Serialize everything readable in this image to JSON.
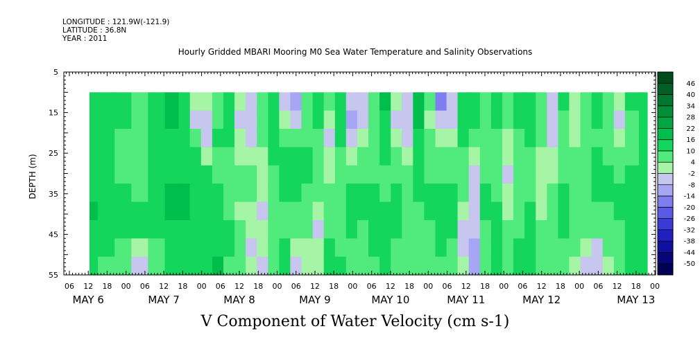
{
  "header": {
    "longitude": "LONGITUDE : 121.9W(-121.9)",
    "latitude": "LATITUDE : 36.8N",
    "year": "YEAR : 2011"
  },
  "chart_data": {
    "type": "heatmap",
    "title": "Hourly Gridded MBARI Mooring M0 Sea Water Temperature and Salinity Observations",
    "xlabel": "V Component of Water Velocity (cm s-1)",
    "ylabel": "DEPTH (m)",
    "ylim": [
      55,
      5
    ],
    "y_ticks": [
      5,
      15,
      25,
      35,
      45,
      55
    ],
    "data_depth_range": [
      10,
      55
    ],
    "x_hour_ticks": [
      "06",
      "12",
      "18",
      "00",
      "06",
      "12",
      "18",
      "00",
      "06",
      "12",
      "18",
      "00",
      "06",
      "12",
      "18",
      "00",
      "06",
      "12",
      "18",
      "00",
      "06",
      "12",
      "18",
      "00",
      "06",
      "12",
      "18",
      "00",
      "06",
      "12",
      "18",
      "00"
    ],
    "x_date_labels": [
      "MAY  6",
      "MAY  7",
      "MAY  8",
      "MAY  9",
      "MAY 10",
      "MAY 11",
      "MAY 12",
      "MAY 13"
    ],
    "colorbar": {
      "levels": [
        46,
        40,
        34,
        28,
        22,
        16,
        10,
        4,
        -2,
        -8,
        -14,
        -20,
        -26,
        -32,
        -38,
        -44,
        -50
      ],
      "colors": [
        "#004a1c",
        "#005f25",
        "#00772f",
        "#008f38",
        "#00a642",
        "#00be4c",
        "#14d65c",
        "#50eb7c",
        "#a6f5a6",
        "#c6c6ee",
        "#a6a6f5",
        "#7e7ef0",
        "#5a5ae6",
        "#3a3ad6",
        "#2020c0",
        "#10109e",
        "#06067a",
        "#000055"
      ]
    },
    "columns": [
      {
        "t": 0.0,
        "v": [
          14,
          12,
          12,
          12,
          13,
          15,
          16,
          14,
          12,
          10
        ]
      },
      {
        "t": 0.03,
        "v": [
          12,
          12,
          12,
          10,
          12,
          14,
          14,
          12,
          10,
          8
        ]
      },
      {
        "t": 0.06,
        "v": [
          10,
          10,
          8,
          6,
          8,
          10,
          12,
          10,
          6,
          4
        ]
      },
      {
        "t": 0.09,
        "v": [
          8,
          8,
          6,
          4,
          6,
          8,
          10,
          10,
          -2,
          -6
        ]
      },
      {
        "t": 0.12,
        "v": [
          14,
          14,
          12,
          10,
          12,
          14,
          14,
          12,
          8,
          6
        ]
      },
      {
        "t": 0.15,
        "v": [
          18,
          16,
          14,
          12,
          14,
          16,
          16,
          14,
          12,
          10
        ]
      },
      {
        "t": 0.17,
        "v": [
          10,
          10,
          12,
          14,
          14,
          16,
          16,
          14,
          12,
          12
        ]
      },
      {
        "t": 0.19,
        "v": [
          -2,
          -4,
          4,
          10,
          12,
          14,
          14,
          12,
          12,
          10
        ]
      },
      {
        "t": 0.21,
        "v": [
          -2,
          -6,
          -4,
          2,
          10,
          12,
          12,
          10,
          12,
          14
        ]
      },
      {
        "t": 0.23,
        "v": [
          8,
          8,
          10,
          8,
          8,
          10,
          10,
          12,
          14,
          16
        ]
      },
      {
        "t": 0.25,
        "v": [
          12,
          10,
          10,
          8,
          6,
          6,
          8,
          10,
          10,
          8
        ]
      },
      {
        "t": 0.27,
        "v": [
          -2,
          -4,
          -2,
          2,
          4,
          4,
          2,
          6,
          8,
          6
        ]
      },
      {
        "t": 0.29,
        "v": [
          -4,
          -6,
          -4,
          2,
          6,
          4,
          -2,
          -2,
          -4,
          -2
        ]
      },
      {
        "t": 0.31,
        "v": [
          8,
          6,
          4,
          2,
          2,
          -2,
          -4,
          -2,
          -2,
          -4
        ]
      },
      {
        "t": 0.33,
        "v": [
          14,
          14,
          12,
          10,
          8,
          6,
          4,
          4,
          6,
          8
        ]
      },
      {
        "t": 0.35,
        "v": [
          -4,
          -2,
          6,
          10,
          12,
          10,
          8,
          8,
          10,
          10
        ]
      },
      {
        "t": 0.37,
        "v": [
          -10,
          -6,
          4,
          10,
          12,
          10,
          8,
          6,
          -2,
          -4
        ]
      },
      {
        "t": 0.39,
        "v": [
          8,
          6,
          8,
          10,
          10,
          8,
          6,
          4,
          -2,
          -2
        ]
      },
      {
        "t": 0.41,
        "v": [
          12,
          10,
          8,
          6,
          6,
          4,
          -2,
          -4,
          -2,
          2
        ]
      },
      {
        "t": 0.43,
        "v": [
          4,
          -2,
          -4,
          -2,
          2,
          4,
          6,
          8,
          10,
          12
        ]
      },
      {
        "t": 0.45,
        "v": [
          14,
          12,
          10,
          8,
          8,
          6,
          4,
          6,
          8,
          10
        ]
      },
      {
        "t": 0.47,
        "v": [
          -8,
          -10,
          -6,
          2,
          8,
          10,
          12,
          10,
          8,
          6
        ]
      },
      {
        "t": 0.49,
        "v": [
          -6,
          -4,
          -2,
          4,
          8,
          10,
          10,
          8,
          6,
          4
        ]
      },
      {
        "t": 0.51,
        "v": [
          8,
          6,
          4,
          6,
          8,
          10,
          12,
          12,
          10,
          8
        ]
      },
      {
        "t": 0.53,
        "v": [
          16,
          14,
          12,
          10,
          8,
          8,
          10,
          12,
          12,
          10
        ]
      },
      {
        "t": 0.55,
        "v": [
          -2,
          -4,
          2,
          6,
          8,
          10,
          12,
          10,
          8,
          6
        ]
      },
      {
        "t": 0.57,
        "v": [
          -6,
          -8,
          -4,
          2,
          6,
          8,
          8,
          6,
          4,
          4
        ]
      },
      {
        "t": 0.59,
        "v": [
          18,
          16,
          14,
          12,
          12,
          10,
          8,
          6,
          6,
          8
        ]
      },
      {
        "t": 0.61,
        "v": [
          4,
          2,
          4,
          6,
          8,
          10,
          10,
          8,
          6,
          6
        ]
      },
      {
        "t": 0.63,
        "v": [
          -20,
          -8,
          -2,
          4,
          8,
          12,
          14,
          12,
          10,
          8
        ]
      },
      {
        "t": 0.65,
        "v": [
          -6,
          -4,
          -2,
          4,
          8,
          10,
          12,
          10,
          8,
          6
        ]
      },
      {
        "t": 0.67,
        "v": [
          14,
          12,
          10,
          8,
          6,
          4,
          -2,
          -4,
          -4,
          -2
        ]
      },
      {
        "t": 0.69,
        "v": [
          12,
          10,
          8,
          2,
          -4,
          -6,
          -8,
          -8,
          -10,
          -14
        ]
      },
      {
        "t": 0.71,
        "v": [
          8,
          6,
          4,
          6,
          8,
          10,
          10,
          8,
          6,
          4
        ]
      },
      {
        "t": 0.73,
        "v": [
          12,
          10,
          8,
          6,
          6,
          8,
          10,
          12,
          12,
          10
        ]
      },
      {
        "t": 0.75,
        "v": [
          6,
          4,
          2,
          -2,
          -4,
          -2,
          2,
          4,
          6,
          6
        ]
      },
      {
        "t": 0.77,
        "v": [
          10,
          10,
          8,
          6,
          4,
          4,
          6,
          8,
          10,
          10
        ]
      },
      {
        "t": 0.79,
        "v": [
          12,
          12,
          10,
          8,
          6,
          8,
          10,
          12,
          12,
          12
        ]
      },
      {
        "t": 0.81,
        "v": [
          8,
          6,
          4,
          2,
          -2,
          -2,
          2,
          4,
          6,
          6
        ]
      },
      {
        "t": 0.83,
        "v": [
          -4,
          -6,
          -4,
          -2,
          2,
          4,
          6,
          8,
          8,
          8
        ]
      },
      {
        "t": 0.85,
        "v": [
          10,
          8,
          6,
          6,
          8,
          10,
          12,
          10,
          8,
          8
        ]
      },
      {
        "t": 0.87,
        "v": [
          -2,
          -2,
          2,
          4,
          6,
          8,
          8,
          6,
          4,
          2
        ]
      },
      {
        "t": 0.89,
        "v": [
          8,
          6,
          4,
          6,
          8,
          8,
          6,
          4,
          -2,
          -4
        ]
      },
      {
        "t": 0.91,
        "v": [
          12,
          10,
          8,
          10,
          12,
          10,
          8,
          6,
          -4,
          -8
        ]
      },
      {
        "t": 0.93,
        "v": [
          6,
          4,
          6,
          8,
          10,
          10,
          8,
          6,
          4,
          2
        ]
      },
      {
        "t": 0.95,
        "v": [
          -2,
          -4,
          2,
          6,
          8,
          10,
          10,
          8,
          6,
          6
        ]
      },
      {
        "t": 0.97,
        "v": [
          10,
          8,
          6,
          8,
          10,
          12,
          12,
          10,
          10,
          10
        ]
      },
      {
        "t": 1.0,
        "v": [
          14,
          14,
          12,
          12,
          12,
          12,
          12,
          12,
          12,
          12
        ]
      }
    ]
  }
}
